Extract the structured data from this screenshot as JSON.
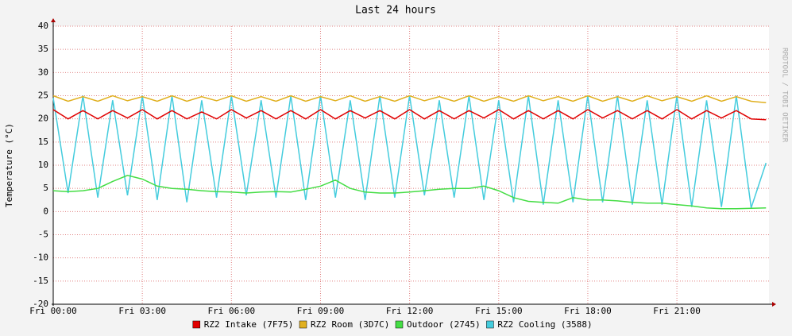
{
  "chart_data": {
    "type": "line",
    "title": "Last 24 hours",
    "y_label": "Temperature (°C)",
    "side_text": "RRDTOOL / TOBI OETIKER",
    "x": [
      0,
      0.5,
      1,
      1.5,
      2,
      2.5,
      3,
      3.5,
      4,
      4.5,
      5,
      5.5,
      6,
      6.5,
      7,
      7.5,
      8,
      8.5,
      9,
      9.5,
      10,
      10.5,
      11,
      11.5,
      12,
      12.5,
      13,
      13.5,
      14,
      14.5,
      15,
      15.5,
      16,
      16.5,
      17,
      17.5,
      18,
      18.5,
      19,
      19.5,
      20,
      20.5,
      21,
      21.5,
      22,
      22.5,
      23,
      23.5,
      24
    ],
    "xlim": [
      0,
      24.1
    ],
    "xticks": [
      {
        "value": 0,
        "label": "Fri 00:00"
      },
      {
        "value": 3,
        "label": "Fri 03:00"
      },
      {
        "value": 6,
        "label": "Fri 06:00"
      },
      {
        "value": 9,
        "label": "Fri 09:00"
      },
      {
        "value": 12,
        "label": "Fri 12:00"
      },
      {
        "value": 15,
        "label": "Fri 15:00"
      },
      {
        "value": 18,
        "label": "Fri 18:00"
      },
      {
        "value": 21,
        "label": "Fri 21:00"
      }
    ],
    "ylim": [
      -20,
      40
    ],
    "yticks": [
      -20,
      -15,
      -10,
      -5,
      0,
      5,
      10,
      15,
      20,
      25,
      30,
      35,
      40
    ],
    "grid": true,
    "series": [
      {
        "name": "RZ2 Intake (7F75)",
        "color": "#e00000",
        "values": [
          22,
          20,
          21.8,
          20,
          21.8,
          20.2,
          22,
          20,
          21.8,
          20,
          21.5,
          20,
          22,
          20.2,
          21.8,
          20,
          21.8,
          20,
          22,
          20,
          21.8,
          20.2,
          21.8,
          20,
          22,
          20,
          21.8,
          20,
          21.8,
          20.2,
          22,
          20,
          21.8,
          20,
          21.8,
          20,
          22,
          20.2,
          21.8,
          20,
          21.8,
          20,
          22,
          20,
          21.8,
          20.2,
          21.8,
          20,
          19.8
        ]
      },
      {
        "name": "RZ2 Room (3D7C)",
        "color": "#e0b020",
        "values": [
          25,
          23.8,
          24.8,
          23.8,
          25,
          23.9,
          24.8,
          23.8,
          25,
          23.8,
          24.8,
          23.9,
          25,
          23.8,
          24.8,
          23.8,
          25,
          23.8,
          24.8,
          23.9,
          25,
          23.8,
          24.8,
          23.8,
          25,
          23.9,
          24.8,
          23.8,
          25,
          23.8,
          24.8,
          23.8,
          25,
          23.9,
          24.8,
          23.8,
          25,
          23.8,
          24.8,
          23.8,
          25,
          23.9,
          24.8,
          23.8,
          25,
          23.8,
          24.8,
          23.8,
          23.5
        ]
      },
      {
        "name": "Outdoor (2745)",
        "color": "#44dd44",
        "values": [
          4.5,
          4.3,
          4.5,
          5,
          6.5,
          7.8,
          7,
          5.5,
          5,
          4.8,
          4.5,
          4.3,
          4.2,
          4,
          4.2,
          4.3,
          4.2,
          4.8,
          5.5,
          6.8,
          5,
          4.2,
          4,
          4,
          4.2,
          4.5,
          4.8,
          5,
          5,
          5.5,
          4.5,
          3,
          2.2,
          2,
          1.8,
          3,
          2.5,
          2.5,
          2.3,
          2,
          1.8,
          1.8,
          1.5,
          1.2,
          0.8,
          0.6,
          0.6,
          0.7,
          0.8
        ]
      },
      {
        "name": "RZ2 Cooling (3588)",
        "color": "#44ccdd",
        "values": [
          24.5,
          4,
          25,
          3,
          24,
          3.5,
          25,
          2.5,
          25,
          2,
          24,
          3,
          25,
          3.5,
          24,
          3,
          25,
          2.5,
          25,
          3,
          24,
          2.5,
          25,
          3,
          25,
          3.5,
          24,
          3,
          25,
          2.5,
          24,
          2,
          25,
          1.5,
          24,
          2,
          25,
          2,
          25,
          1.5,
          24,
          1.5,
          25,
          1,
          24,
          1,
          25,
          0.8,
          10.5
        ]
      }
    ]
  }
}
